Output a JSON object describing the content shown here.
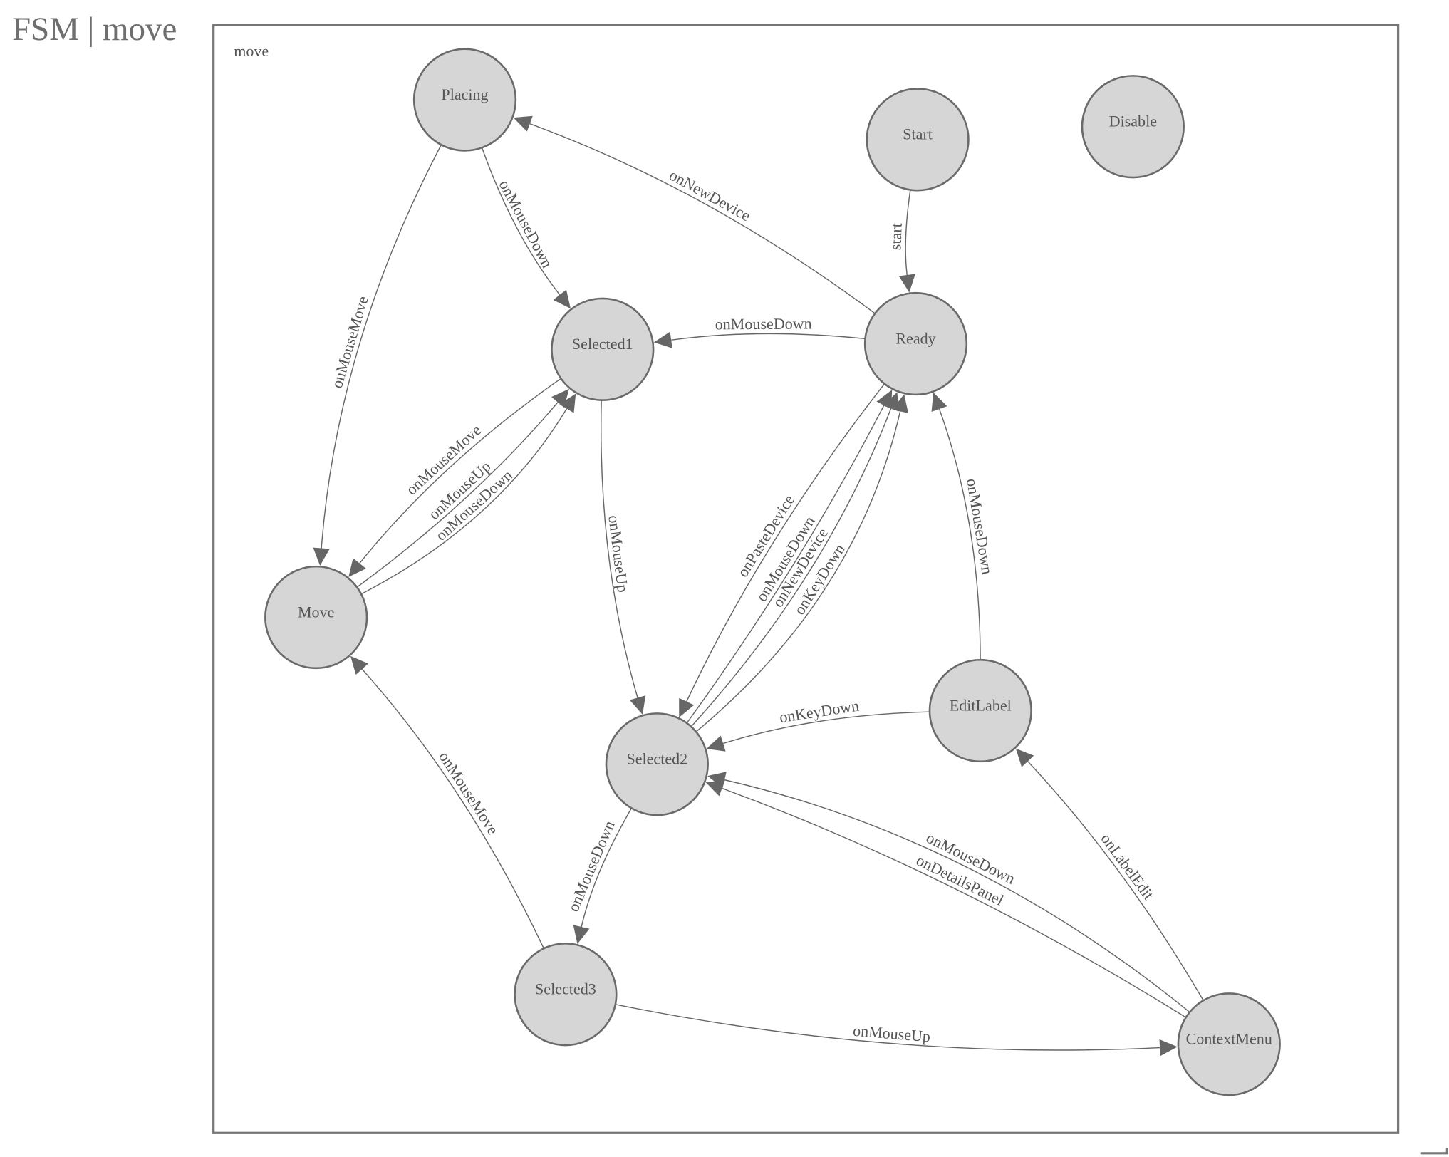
{
  "title": "FSM | move",
  "group_label": "move",
  "colors": {
    "node_fill": "#d6d6d6",
    "stroke": "#666666",
    "text": "#555555"
  },
  "nodes": [
    {
      "id": "Placing",
      "label": "Placing"
    },
    {
      "id": "Start",
      "label": "Start"
    },
    {
      "id": "Disable",
      "label": "Disable"
    },
    {
      "id": "Selected1",
      "label": "Selected1"
    },
    {
      "id": "Ready",
      "label": "Ready"
    },
    {
      "id": "Move",
      "label": "Move"
    },
    {
      "id": "EditLabel",
      "label": "EditLabel"
    },
    {
      "id": "Selected2",
      "label": "Selected2"
    },
    {
      "id": "Selected3",
      "label": "Selected3"
    },
    {
      "id": "ContextMenu",
      "label": "ContextMenu"
    }
  ],
  "edges": [
    {
      "from": "Start",
      "to": "Ready",
      "label": "start"
    },
    {
      "from": "Ready",
      "to": "Placing",
      "label": "onNewDevice"
    },
    {
      "from": "Placing",
      "to": "Selected1",
      "label": "onMouseDown"
    },
    {
      "from": "Placing",
      "to": "Move",
      "label": "onMouseMove"
    },
    {
      "from": "Ready",
      "to": "Selected1",
      "label": "onMouseDown"
    },
    {
      "from": "Selected1",
      "to": "Move",
      "label": "onMouseMove"
    },
    {
      "from": "Move",
      "to": "Selected1",
      "label": "onMouseUp"
    },
    {
      "from": "Move",
      "to": "Selected1",
      "label": "onMouseDown"
    },
    {
      "from": "Selected1",
      "to": "Selected2",
      "label": "onMouseUp"
    },
    {
      "from": "Ready",
      "to": "Selected2",
      "label": "onPasteDevice"
    },
    {
      "from": "Selected2",
      "to": "Ready",
      "label": "onMouseDown"
    },
    {
      "from": "Selected2",
      "to": "Ready",
      "label": "onNewDevice"
    },
    {
      "from": "Selected2",
      "to": "Ready",
      "label": "onKeyDown"
    },
    {
      "from": "EditLabel",
      "to": "Ready",
      "label": "onMouseDown"
    },
    {
      "from": "EditLabel",
      "to": "Selected2",
      "label": "onKeyDown"
    },
    {
      "from": "ContextMenu",
      "to": "Selected2",
      "label": "onMouseDown"
    },
    {
      "from": "ContextMenu",
      "to": "Selected2",
      "label": "onDetailsPanel"
    },
    {
      "from": "ContextMenu",
      "to": "EditLabel",
      "label": "onLabelEdit"
    },
    {
      "from": "Selected2",
      "to": "Selected3",
      "label": "onMouseDown"
    },
    {
      "from": "Selected3",
      "to": "Move",
      "label": "onMouseMove"
    },
    {
      "from": "Selected3",
      "to": "ContextMenu",
      "label": "onMouseUp"
    }
  ]
}
